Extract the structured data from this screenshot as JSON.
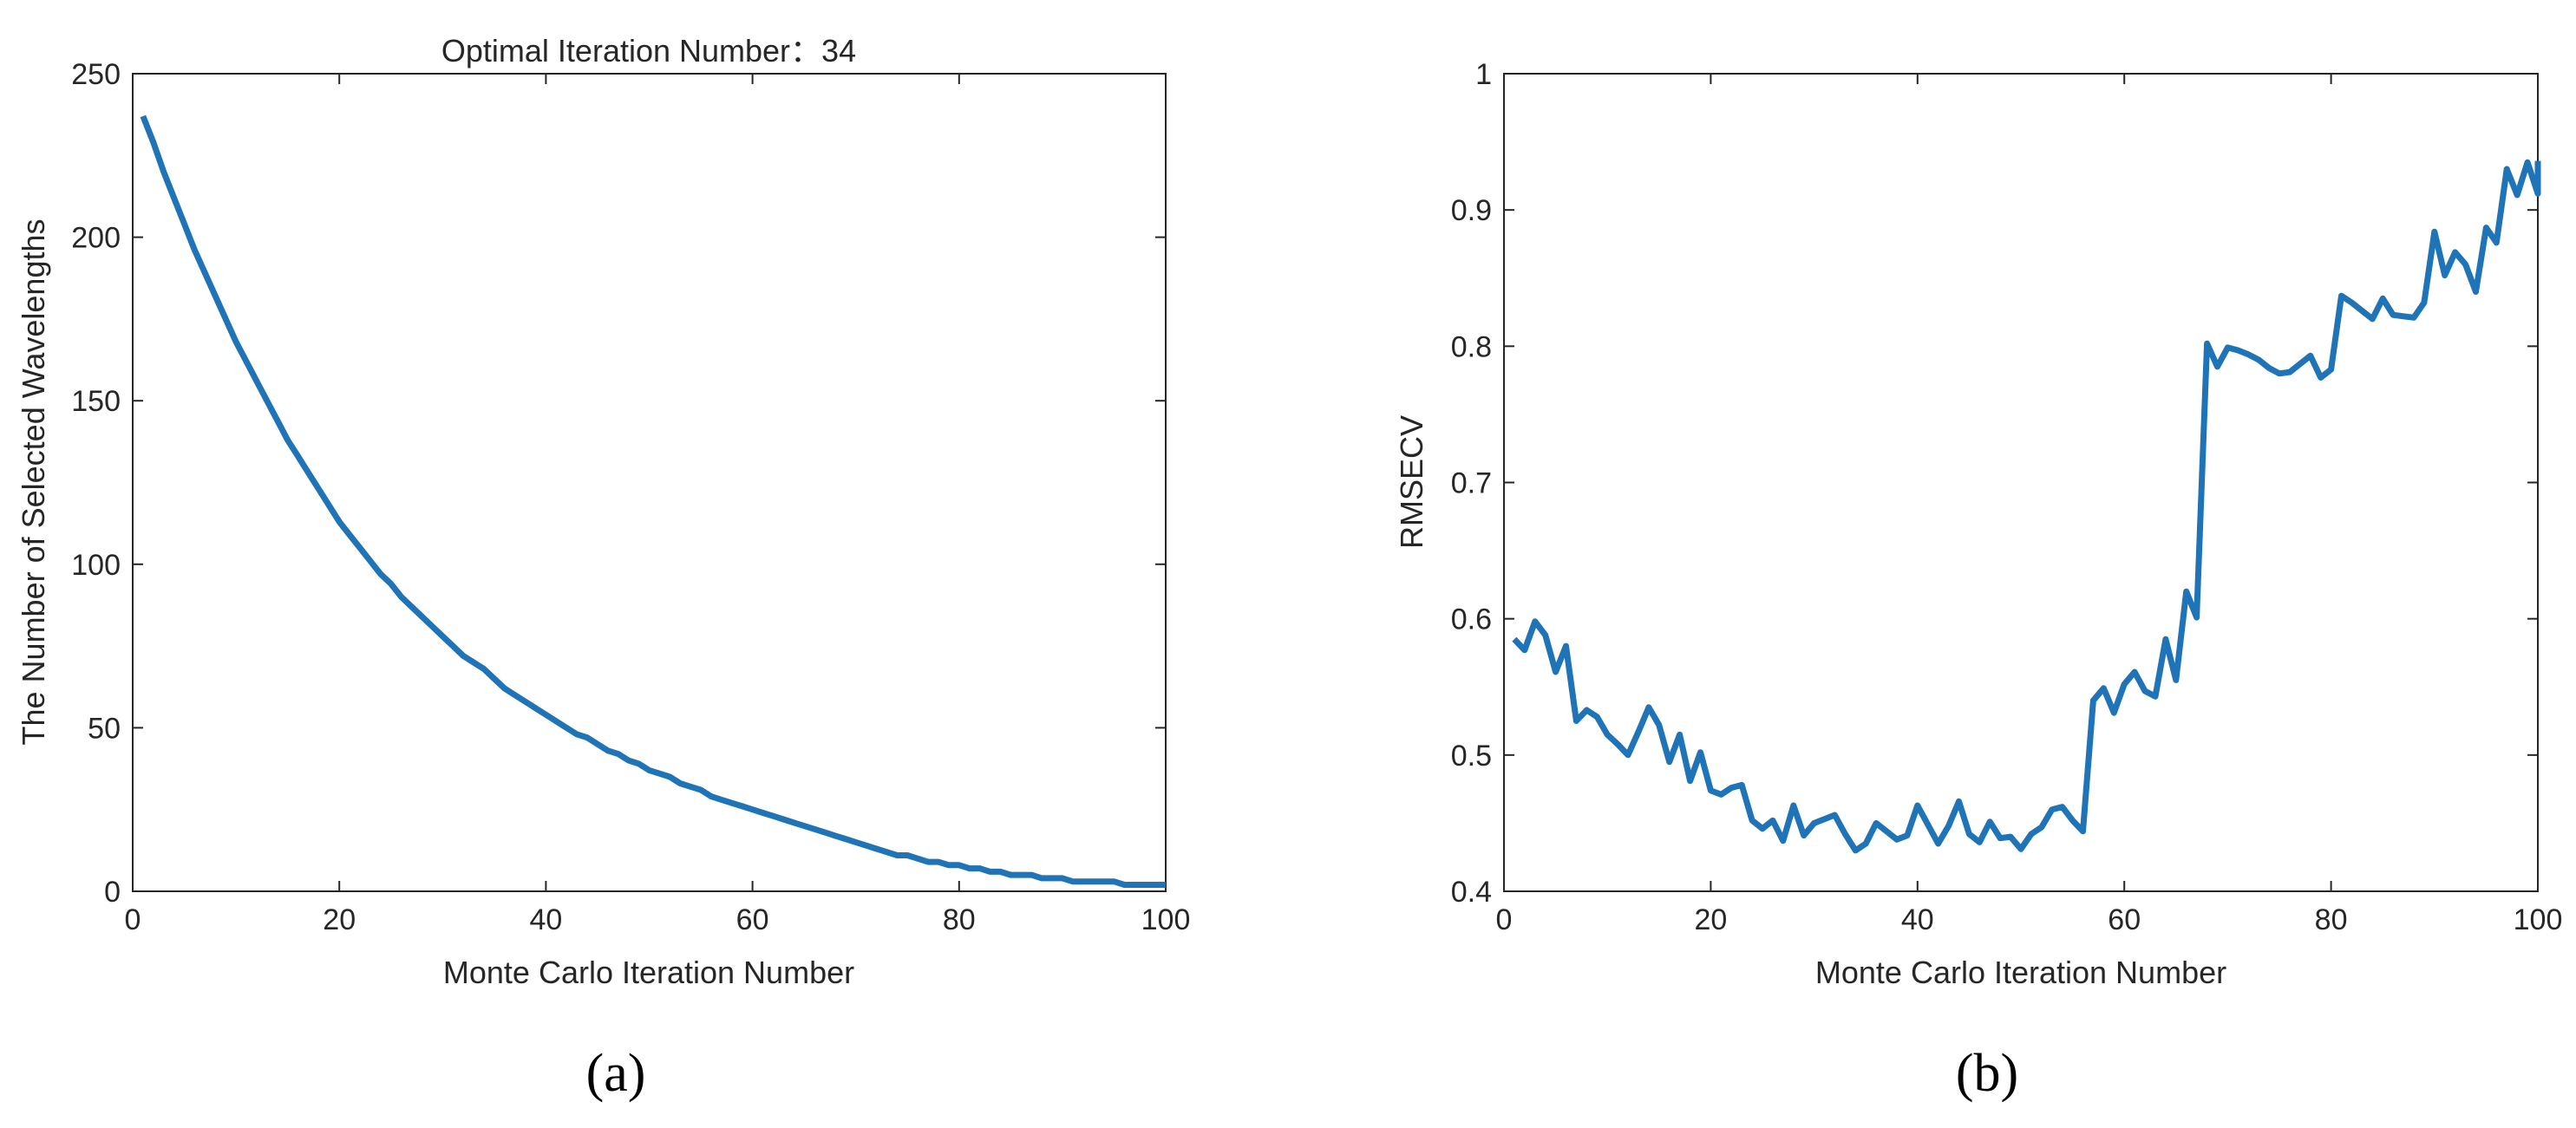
{
  "panels": [
    {
      "label": "(a)"
    },
    {
      "label": "(b)"
    }
  ],
  "colors": {
    "line": "#1f73b7",
    "axis": "#262626",
    "text": "#262626"
  },
  "chart_data": [
    {
      "type": "line",
      "title": "Optimal Iteration Number：34",
      "xlabel": "Monte Carlo Iteration Number",
      "ylabel": "The Number of Selected Wavelengths",
      "xlim": [
        0,
        100
      ],
      "ylim": [
        0,
        250
      ],
      "xticks": [
        0,
        20,
        40,
        60,
        80,
        100
      ],
      "yticks": [
        0,
        50,
        100,
        150,
        200,
        250
      ],
      "grid": false,
      "series": [
        {
          "values": [
            [
              1,
              237
            ],
            [
              2,
              229
            ],
            [
              3,
              220
            ],
            [
              4,
              212
            ],
            [
              5,
              204
            ],
            [
              6,
              196
            ],
            [
              7,
              189
            ],
            [
              8,
              182
            ],
            [
              9,
              175
            ],
            [
              10,
              168
            ],
            [
              11,
              162
            ],
            [
              12,
              156
            ],
            [
              13,
              150
            ],
            [
              14,
              144
            ],
            [
              15,
              138
            ],
            [
              16,
              133
            ],
            [
              17,
              128
            ],
            [
              18,
              123
            ],
            [
              19,
              118
            ],
            [
              20,
              113
            ],
            [
              21,
              109
            ],
            [
              22,
              105
            ],
            [
              23,
              101
            ],
            [
              24,
              97
            ],
            [
              25,
              94
            ],
            [
              26,
              90
            ],
            [
              27,
              87
            ],
            [
              28,
              84
            ],
            [
              29,
              81
            ],
            [
              30,
              78
            ],
            [
              31,
              75
            ],
            [
              32,
              72
            ],
            [
              33,
              70
            ],
            [
              34,
              68
            ],
            [
              35,
              65
            ],
            [
              36,
              62
            ],
            [
              37,
              60
            ],
            [
              38,
              58
            ],
            [
              39,
              56
            ],
            [
              40,
              54
            ],
            [
              41,
              52
            ],
            [
              42,
              50
            ],
            [
              43,
              48
            ],
            [
              44,
              47
            ],
            [
              45,
              45
            ],
            [
              46,
              43
            ],
            [
              47,
              42
            ],
            [
              48,
              40
            ],
            [
              49,
              39
            ],
            [
              50,
              37
            ],
            [
              51,
              36
            ],
            [
              52,
              35
            ],
            [
              53,
              33
            ],
            [
              54,
              32
            ],
            [
              55,
              31
            ],
            [
              56,
              29
            ],
            [
              57,
              28
            ],
            [
              58,
              27
            ],
            [
              59,
              26
            ],
            [
              60,
              25
            ],
            [
              61,
              24
            ],
            [
              62,
              23
            ],
            [
              63,
              22
            ],
            [
              64,
              21
            ],
            [
              65,
              20
            ],
            [
              66,
              19
            ],
            [
              67,
              18
            ],
            [
              68,
              17
            ],
            [
              69,
              16
            ],
            [
              70,
              15
            ],
            [
              71,
              14
            ],
            [
              72,
              13
            ],
            [
              73,
              12
            ],
            [
              74,
              11
            ],
            [
              75,
              11
            ],
            [
              76,
              10
            ],
            [
              77,
              9
            ],
            [
              78,
              9
            ],
            [
              79,
              8
            ],
            [
              80,
              8
            ],
            [
              81,
              7
            ],
            [
              82,
              7
            ],
            [
              83,
              6
            ],
            [
              84,
              6
            ],
            [
              85,
              5
            ],
            [
              86,
              5
            ],
            [
              87,
              5
            ],
            [
              88,
              4
            ],
            [
              89,
              4
            ],
            [
              90,
              4
            ],
            [
              91,
              3
            ],
            [
              92,
              3
            ],
            [
              93,
              3
            ],
            [
              94,
              3
            ],
            [
              95,
              3
            ],
            [
              96,
              2
            ],
            [
              97,
              2
            ],
            [
              98,
              2
            ],
            [
              99,
              2
            ],
            [
              100,
              2
            ]
          ]
        }
      ]
    },
    {
      "type": "line",
      "title": "",
      "xlabel": "Monte Carlo Iteration Number",
      "ylabel": "RMSECV",
      "xlim": [
        0,
        100
      ],
      "ylim": [
        0.4,
        1
      ],
      "xticks": [
        0,
        20,
        40,
        60,
        80,
        100
      ],
      "yticks": [
        0.4,
        0.5,
        0.6,
        0.7,
        0.8,
        0.9,
        1
      ],
      "ytick_labels": [
        "0.4",
        "0.5",
        "0.6",
        "0.7",
        "0.8",
        "0.9",
        "1"
      ],
      "grid": false,
      "series": [
        {
          "values": [
            [
              1,
              0.585
            ],
            [
              2,
              0.577
            ],
            [
              3,
              0.598
            ],
            [
              4,
              0.588
            ],
            [
              5,
              0.561
            ],
            [
              6,
              0.58
            ],
            [
              7,
              0.525
            ],
            [
              8,
              0.533
            ],
            [
              9,
              0.528
            ],
            [
              10,
              0.515
            ],
            [
              11,
              0.508
            ],
            [
              12,
              0.5
            ],
            [
              13,
              0.517
            ],
            [
              14,
              0.535
            ],
            [
              15,
              0.522
            ],
            [
              16,
              0.495
            ],
            [
              17,
              0.515
            ],
            [
              18,
              0.481
            ],
            [
              19,
              0.502
            ],
            [
              20,
              0.474
            ],
            [
              21,
              0.471
            ],
            [
              22,
              0.476
            ],
            [
              23,
              0.478
            ],
            [
              24,
              0.452
            ],
            [
              25,
              0.446
            ],
            [
              26,
              0.452
            ],
            [
              27,
              0.437
            ],
            [
              28,
              0.463
            ],
            [
              29,
              0.441
            ],
            [
              30,
              0.45
            ],
            [
              31,
              0.453
            ],
            [
              32,
              0.456
            ],
            [
              33,
              0.442
            ],
            [
              34,
              0.43
            ],
            [
              35,
              0.435
            ],
            [
              36,
              0.45
            ],
            [
              37,
              0.444
            ],
            [
              38,
              0.438
            ],
            [
              39,
              0.441
            ],
            [
              40,
              0.463
            ],
            [
              41,
              0.449
            ],
            [
              42,
              0.435
            ],
            [
              43,
              0.448
            ],
            [
              44,
              0.466
            ],
            [
              45,
              0.442
            ],
            [
              46,
              0.436
            ],
            [
              47,
              0.451
            ],
            [
              48,
              0.439
            ],
            [
              49,
              0.44
            ],
            [
              50,
              0.431
            ],
            [
              51,
              0.442
            ],
            [
              52,
              0.447
            ],
            [
              53,
              0.46
            ],
            [
              54,
              0.462
            ],
            [
              55,
              0.452
            ],
            [
              56,
              0.444
            ],
            [
              57,
              0.54
            ],
            [
              58,
              0.549
            ],
            [
              59,
              0.531
            ],
            [
              60,
              0.552
            ],
            [
              61,
              0.561
            ],
            [
              62,
              0.547
            ],
            [
              63,
              0.543
            ],
            [
              64,
              0.585
            ],
            [
              65,
              0.555
            ],
            [
              66,
              0.62
            ],
            [
              67,
              0.601
            ],
            [
              68,
              0.802
            ],
            [
              69,
              0.785
            ],
            [
              70,
              0.799
            ],
            [
              71,
              0.797
            ],
            [
              72,
              0.794
            ],
            [
              73,
              0.79
            ],
            [
              74,
              0.784
            ],
            [
              75,
              0.78
            ],
            [
              76,
              0.781
            ],
            [
              77,
              0.787
            ],
            [
              78,
              0.793
            ],
            [
              79,
              0.777
            ],
            [
              80,
              0.783
            ],
            [
              81,
              0.837
            ],
            [
              82,
              0.832
            ],
            [
              83,
              0.826
            ],
            [
              84,
              0.82
            ],
            [
              85,
              0.835
            ],
            [
              86,
              0.823
            ],
            [
              87,
              0.822
            ],
            [
              88,
              0.821
            ],
            [
              89,
              0.832
            ],
            [
              90,
              0.884
            ],
            [
              91,
              0.852
            ],
            [
              92,
              0.869
            ],
            [
              93,
              0.86
            ],
            [
              94,
              0.84
            ],
            [
              95,
              0.887
            ],
            [
              96,
              0.876
            ],
            [
              97,
              0.93
            ],
            [
              98,
              0.911
            ],
            [
              99,
              0.935
            ],
            [
              100,
              0.912
            ],
            [
              101,
              0.936
            ]
          ]
        }
      ]
    }
  ]
}
